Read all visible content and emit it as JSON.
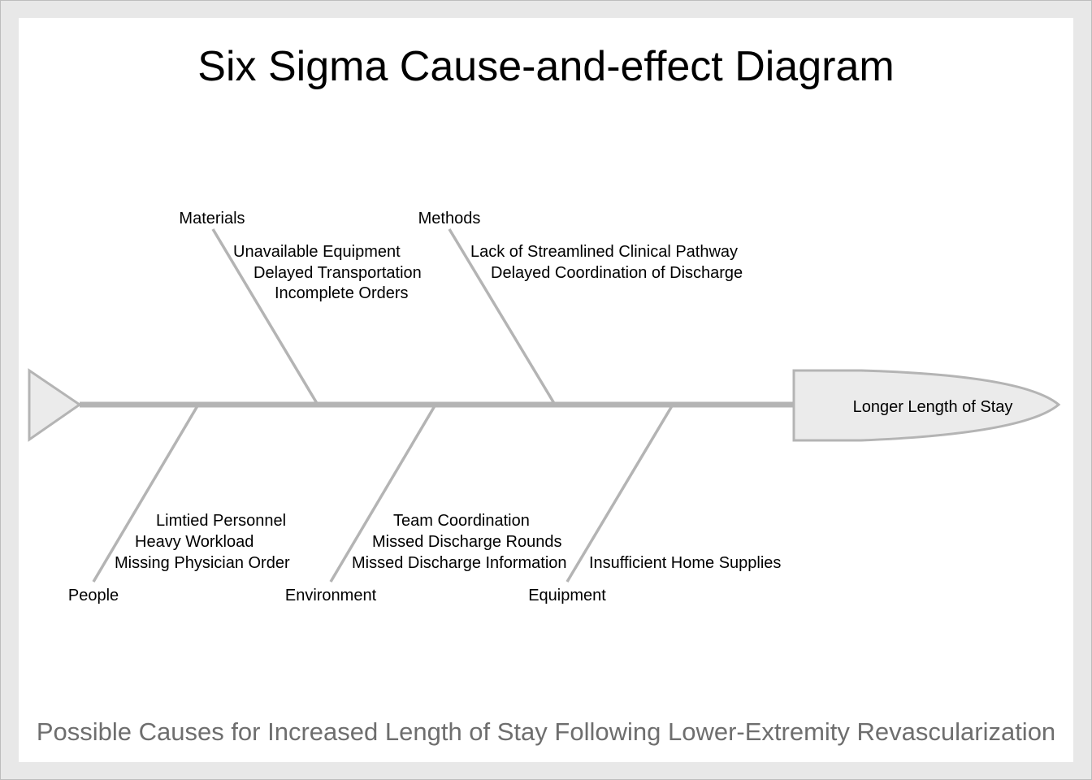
{
  "title": "Six Sigma Cause-and-effect Diagram",
  "subtitle": "Possible Causes for Increased Length of Stay Following Lower-Extremity Revascularization",
  "effect": "Longer Length of Stay",
  "colors": {
    "bone": "#b4b4b4",
    "head_fill": "#ebebeb",
    "frame": "#e8e8e8"
  },
  "categories": [
    {
      "name": "Materials",
      "position": "top",
      "causes": [
        "Unavailable Equipment",
        "Delayed Transportation",
        "Incomplete Orders"
      ]
    },
    {
      "name": "Methods",
      "position": "top",
      "causes": [
        "Lack of Streamlined Clinical Pathway",
        "Delayed Coordination of Discharge"
      ]
    },
    {
      "name": "People",
      "position": "bottom",
      "causes": [
        "Limtied Personnel",
        "Heavy Workload",
        "Missing Physician Order"
      ]
    },
    {
      "name": "Environment",
      "position": "bottom",
      "causes": [
        "Team Coordination",
        "Missed Discharge Rounds",
        "Missed Discharge Information"
      ]
    },
    {
      "name": "Equipment",
      "position": "bottom",
      "causes": [
        "Insufficient Home Supplies"
      ]
    }
  ]
}
